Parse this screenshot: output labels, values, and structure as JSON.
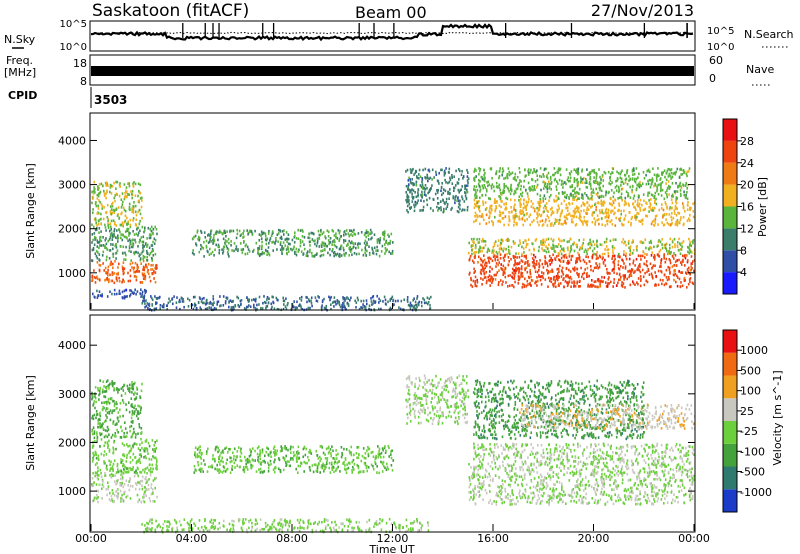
{
  "header": {
    "site": "Saskatoon (fitACF)",
    "beam": "Beam 00",
    "date": "27/Nov/2013"
  },
  "noise_panel": {
    "left_label": "N.Sky",
    "right_label": "N.Search",
    "left_ticks": [
      "10^5",
      "10^0"
    ],
    "right_ticks": [
      "10^5",
      "10^0"
    ]
  },
  "freq_panel": {
    "left_label": "Freq.",
    "left_unit": "[MHz]",
    "right_label": "Nave",
    "left_ticks": [
      "18",
      "8"
    ],
    "right_ticks": [
      "60",
      "0"
    ]
  },
  "cpid": {
    "label": "CPID",
    "value": "3503"
  },
  "chart_data": [
    {
      "type": "heatmap",
      "name": "power",
      "ylabel": "Slant Range [km]",
      "ylim": [
        180,
        4600
      ],
      "yticks": [
        "1000",
        "2000",
        "3000",
        "4000"
      ],
      "xlabel": "",
      "colorbar": {
        "label": "Power [dB]",
        "range": [
          0,
          32
        ],
        "ticks": [
          "4",
          "8",
          "12",
          "16",
          "20",
          "24",
          "28"
        ],
        "colors": [
          "#1a1aff",
          "#2f4fa6",
          "#3b7d6b",
          "#5ab53c",
          "#f0b020",
          "#f07a14",
          "#ee4410",
          "#e81010"
        ]
      },
      "scatter_regions": [
        {
          "t0": 0.0,
          "t1": 2.6,
          "r0": 800,
          "r1": 1300,
          "value": 24
        },
        {
          "t0": 0.0,
          "t1": 2.6,
          "r0": 1300,
          "r1": 2100,
          "value": 12
        },
        {
          "t0": 0.0,
          "t1": 2.0,
          "r0": 2100,
          "r1": 3100,
          "value": 16
        },
        {
          "t0": 0.0,
          "t1": 2.4,
          "r0": 450,
          "r1": 650,
          "value": 6
        },
        {
          "t0": 4.0,
          "t1": 12.0,
          "r0": 1400,
          "r1": 2000,
          "value": 12
        },
        {
          "t0": 2.0,
          "t1": 13.5,
          "r0": 180,
          "r1": 500,
          "value": 8
        },
        {
          "t0": 12.5,
          "t1": 15.0,
          "r0": 2400,
          "r1": 3400,
          "value": 10
        },
        {
          "t0": 15.0,
          "t1": 24.0,
          "r0": 700,
          "r1": 1450,
          "value": 26
        },
        {
          "t0": 15.0,
          "t1": 24.0,
          "r0": 1450,
          "r1": 1800,
          "value": 16
        },
        {
          "t0": 15.2,
          "t1": 24.0,
          "r0": 2100,
          "r1": 2700,
          "value": 18
        },
        {
          "t0": 15.2,
          "t1": 23.8,
          "r0": 2700,
          "r1": 3400,
          "value": 14
        }
      ]
    },
    {
      "type": "heatmap",
      "name": "velocity",
      "ylabel": "Slant Range [km]",
      "ylim": [
        180,
        4600
      ],
      "yticks": [
        "1000",
        "2000",
        "3000",
        "4000"
      ],
      "xlabel": "Time UT",
      "xticks": [
        "00:00",
        "04:00",
        "08:00",
        "12:00",
        "16:00",
        "20:00",
        "00:00"
      ],
      "colorbar": {
        "label": "Velocity [m s^-1]",
        "range": [
          -1000,
          1000
        ],
        "ticks": [
          "1000",
          "500",
          "100",
          "25",
          "-25",
          "-100",
          "-500",
          "-1000"
        ],
        "colors": [
          "#1a3cc8",
          "#2f7a6e",
          "#44a23c",
          "#6cd03c",
          "#c8c8c0",
          "#f0a020",
          "#f06a14",
          "#e81010"
        ]
      },
      "scatter_regions": [
        {
          "t0": 0.0,
          "t1": 2.6,
          "r0": 800,
          "r1": 1400,
          "value": 0
        },
        {
          "t0": 0.0,
          "t1": 2.6,
          "r0": 1400,
          "r1": 2100,
          "value": -150
        },
        {
          "t0": 0.0,
          "t1": 2.0,
          "r0": 2100,
          "r1": 3300,
          "value": -300
        },
        {
          "t0": 4.0,
          "t1": 12.0,
          "r0": 1400,
          "r1": 1950,
          "value": -200
        },
        {
          "t0": 2.0,
          "t1": 13.5,
          "r0": 180,
          "r1": 450,
          "value": -80
        },
        {
          "t0": 12.5,
          "t1": 15.0,
          "r0": 2400,
          "r1": 3400,
          "value": 0
        },
        {
          "t0": 15.0,
          "t1": 24.0,
          "r0": 750,
          "r1": 1600,
          "value": 0
        },
        {
          "t0": 15.2,
          "t1": 24.0,
          "r0": 1600,
          "r1": 2000,
          "value": 5
        },
        {
          "t0": 15.2,
          "t1": 22.0,
          "r0": 2100,
          "r1": 3300,
          "value": -400
        },
        {
          "t0": 17.0,
          "t1": 24.0,
          "r0": 2300,
          "r1": 2800,
          "value": 200
        }
      ]
    }
  ]
}
